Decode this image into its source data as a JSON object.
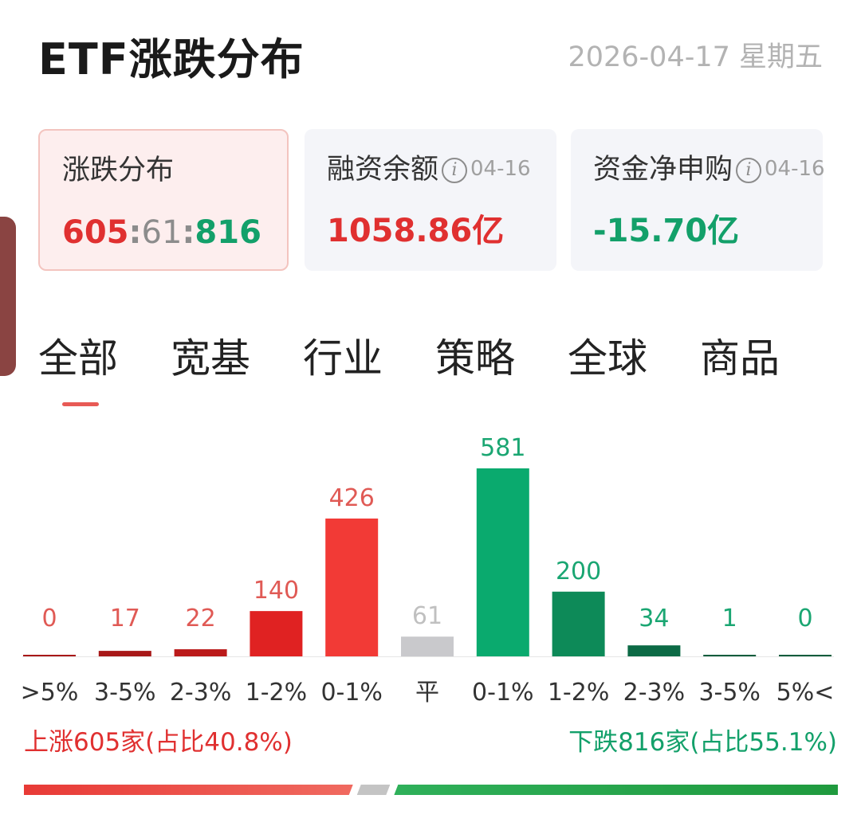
{
  "header": {
    "title": "ETF涨跌分布",
    "date": "2026-04-17 星期五"
  },
  "cards": {
    "distribution": {
      "label": "涨跌分布",
      "up": "605",
      "flat": "61",
      "down": "816",
      "sep": ":"
    },
    "margin": {
      "label": "融资余额",
      "info": "i",
      "date": "04-16",
      "value": "1058.86亿"
    },
    "net_subscription": {
      "label": "资金净申购",
      "info": "i",
      "date": "04-16",
      "value": "-15.70亿"
    }
  },
  "tabs": [
    "全部",
    "宽基",
    "行业",
    "策略",
    "全球",
    "商品"
  ],
  "active_tab": 0,
  "colors": {
    "red_light": "#f23a36",
    "red": "#e02222",
    "red_dark": "#bb1a1a",
    "red_deep": "#a81818",
    "flat": "#c9c9cc",
    "green_light": "#0aaa6e",
    "green": "#0d8a58",
    "green_dark": "#0c6a45",
    "green_deep": "#0b5c3c"
  },
  "chart_data": {
    "type": "bar",
    "categories": [
      ">5%",
      "3-5%",
      "2-3%",
      "1-2%",
      "0-1%",
      "平",
      "0-1%",
      "1-2%",
      "2-3%",
      "3-5%",
      "5%<"
    ],
    "values": [
      0,
      17,
      22,
      140,
      426,
      61,
      581,
      200,
      34,
      1,
      0
    ],
    "bar_colors": [
      "#a81818",
      "#a81818",
      "#bb1a1a",
      "#e02222",
      "#f23a36",
      "#c9c9cc",
      "#0aaa6e",
      "#0d8a58",
      "#0c6a45",
      "#0b5c3c",
      "#0b5c3c"
    ],
    "label_colors": [
      "#e05a55",
      "#e05a55",
      "#e05a55",
      "#e05a55",
      "#e05a55",
      "#c0c0c0",
      "#1aa672",
      "#1aa672",
      "#1aa672",
      "#1aa672",
      "#1aa672"
    ],
    "tick_colors": [
      "#333333",
      "#333333",
      "#333333",
      "#333333",
      "#333333",
      "#333333",
      "#333333",
      "#333333",
      "#333333",
      "#333333",
      "#333333"
    ]
  },
  "summary": {
    "up_text": "上涨605家(占比40.8%)",
    "down_text": "下跌816家(占比55.1%)",
    "up_count": 605,
    "flat_count": 61,
    "down_count": 816
  }
}
